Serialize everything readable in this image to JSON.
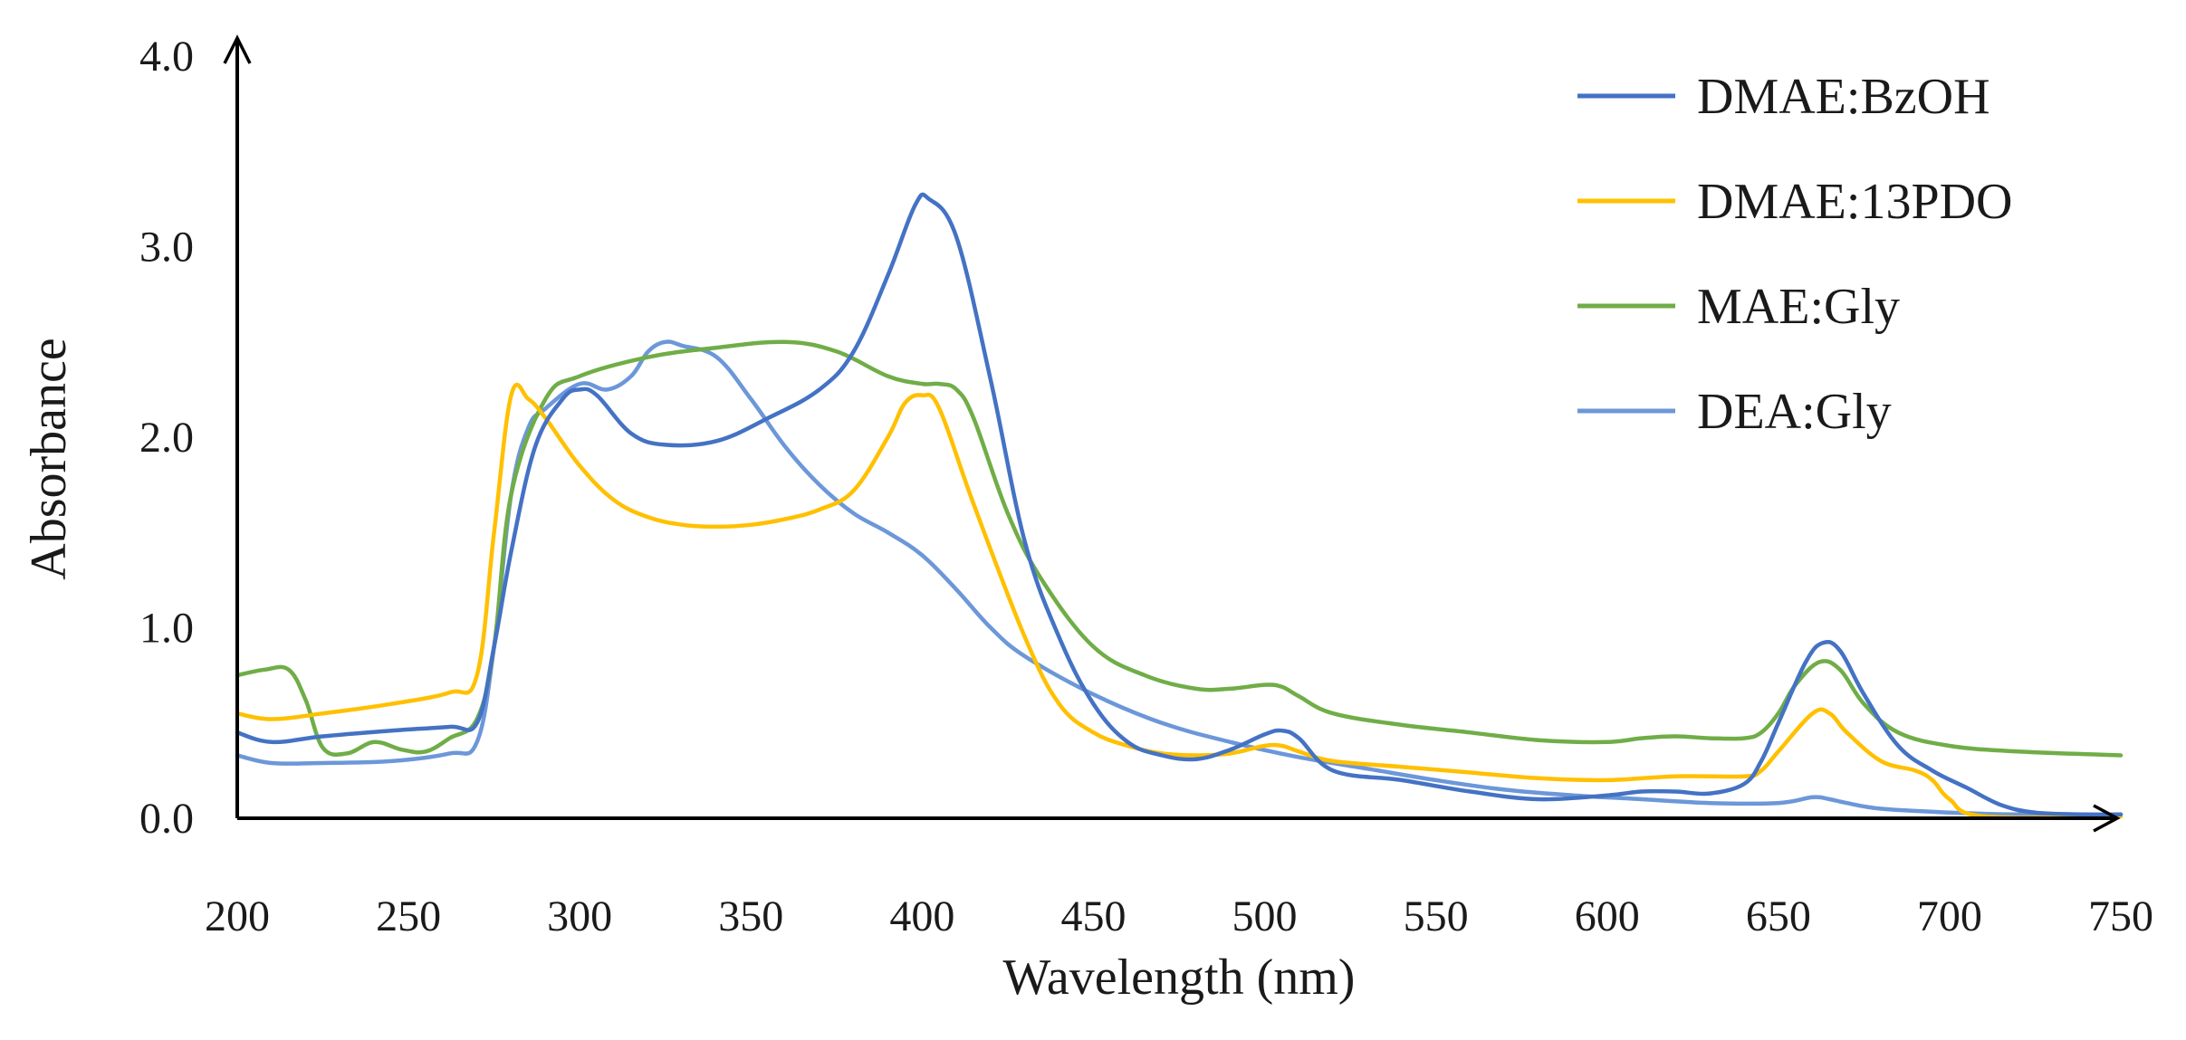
{
  "chart_data": {
    "type": "line",
    "title": "",
    "xlabel": "Wavelength (nm)",
    "ylabel": "Absorbance",
    "xlim": [
      200,
      750
    ],
    "ylim": [
      0,
      4
    ],
    "xticks": [
      "200",
      "250",
      "300",
      "350",
      "400",
      "450",
      "500",
      "550",
      "600",
      "650",
      "700",
      "750"
    ],
    "xtick_values": [
      200,
      250,
      300,
      350,
      400,
      450,
      500,
      550,
      600,
      650,
      700,
      750
    ],
    "yticks": [
      "0.0",
      "1.0",
      "2.0",
      "3.0",
      "4.0"
    ],
    "ytick_values": [
      0,
      1,
      2,
      3,
      4
    ],
    "grid": false,
    "legend_position": "top-right",
    "series": [
      {
        "name": "DMAE:BzOH",
        "color": "#4472C4",
        "x": [
          200,
          210,
          225,
          245,
          262,
          270,
          275,
          280,
          287,
          295,
          300,
          305,
          315,
          325,
          340,
          355,
          370,
          380,
          390,
          398,
          402,
          410,
          420,
          430,
          440,
          450,
          460,
          470,
          480,
          490,
          500,
          505,
          510,
          520,
          540,
          560,
          580,
          600,
          610,
          620,
          630,
          640,
          645,
          650,
          658,
          663,
          668,
          675,
          685,
          695,
          705,
          715,
          725,
          740,
          750
        ],
        "y": [
          0.45,
          0.4,
          0.43,
          0.46,
          0.48,
          0.5,
          0.9,
          1.4,
          1.95,
          2.2,
          2.25,
          2.22,
          2.02,
          1.96,
          1.98,
          2.1,
          2.25,
          2.45,
          2.85,
          3.22,
          3.25,
          3.05,
          2.3,
          1.45,
          0.95,
          0.6,
          0.4,
          0.33,
          0.31,
          0.36,
          0.44,
          0.46,
          0.42,
          0.25,
          0.2,
          0.14,
          0.1,
          0.12,
          0.14,
          0.14,
          0.13,
          0.18,
          0.3,
          0.5,
          0.82,
          0.92,
          0.88,
          0.65,
          0.38,
          0.25,
          0.16,
          0.07,
          0.03,
          0.02,
          0.02
        ]
      },
      {
        "name": "DMAE:13PDO",
        "color": "#FFC000",
        "x": [
          200,
          210,
          225,
          245,
          262,
          270,
          275,
          280,
          285,
          290,
          300,
          310,
          320,
          330,
          340,
          350,
          360,
          370,
          380,
          390,
          395,
          400,
          405,
          415,
          430,
          440,
          450,
          460,
          470,
          480,
          490,
          500,
          505,
          510,
          520,
          540,
          560,
          580,
          600,
          620,
          640,
          645,
          650,
          660,
          665,
          670,
          680,
          690,
          695,
          700,
          710,
          750
        ],
        "y": [
          0.55,
          0.52,
          0.55,
          0.6,
          0.66,
          0.75,
          1.5,
          2.22,
          2.2,
          2.1,
          1.85,
          1.67,
          1.58,
          1.54,
          1.53,
          1.54,
          1.57,
          1.62,
          1.72,
          2.0,
          2.18,
          2.22,
          2.15,
          1.65,
          0.95,
          0.6,
          0.45,
          0.38,
          0.34,
          0.33,
          0.34,
          0.38,
          0.38,
          0.35,
          0.3,
          0.27,
          0.24,
          0.21,
          0.2,
          0.22,
          0.22,
          0.25,
          0.35,
          0.55,
          0.55,
          0.45,
          0.3,
          0.25,
          0.2,
          0.1,
          0.01,
          0.01
        ]
      },
      {
        "name": "MAE:Gly",
        "color": "#70AD47",
        "x": [
          200,
          208,
          215,
          220,
          225,
          232,
          240,
          248,
          255,
          262,
          270,
          275,
          280,
          290,
          300,
          320,
          340,
          360,
          375,
          390,
          400,
          405,
          410,
          415,
          425,
          435,
          450,
          465,
          480,
          490,
          500,
          505,
          510,
          520,
          540,
          560,
          580,
          600,
          610,
          620,
          630,
          640,
          645,
          650,
          655,
          662,
          668,
          675,
          685,
          700,
          720,
          750
        ],
        "y": [
          0.75,
          0.78,
          0.78,
          0.62,
          0.37,
          0.34,
          0.4,
          0.36,
          0.35,
          0.42,
          0.52,
          0.9,
          1.7,
          2.2,
          2.32,
          2.42,
          2.47,
          2.5,
          2.45,
          2.32,
          2.28,
          2.28,
          2.25,
          2.1,
          1.6,
          1.25,
          0.9,
          0.75,
          0.68,
          0.68,
          0.7,
          0.69,
          0.64,
          0.55,
          0.49,
          0.45,
          0.41,
          0.4,
          0.42,
          0.43,
          0.42,
          0.42,
          0.45,
          0.55,
          0.7,
          0.82,
          0.78,
          0.6,
          0.45,
          0.38,
          0.35,
          0.33
        ]
      },
      {
        "name": "DEA:Gly",
        "color": "#6C97D9",
        "x": [
          200,
          210,
          225,
          245,
          262,
          270,
          275,
          280,
          285,
          290,
          300,
          308,
          315,
          320,
          325,
          330,
          340,
          350,
          360,
          370,
          380,
          390,
          400,
          410,
          420,
          430,
          450,
          470,
          490,
          510,
          530,
          550,
          570,
          590,
          610,
          630,
          650,
          660,
          665,
          670,
          680,
          700,
          720,
          750
        ],
        "y": [
          0.33,
          0.29,
          0.29,
          0.3,
          0.34,
          0.4,
          0.9,
          1.7,
          2.05,
          2.15,
          2.28,
          2.25,
          2.32,
          2.45,
          2.5,
          2.48,
          2.42,
          2.2,
          1.95,
          1.75,
          1.6,
          1.5,
          1.38,
          1.2,
          1.0,
          0.85,
          0.65,
          0.5,
          0.4,
          0.32,
          0.26,
          0.2,
          0.15,
          0.12,
          0.1,
          0.08,
          0.08,
          0.11,
          0.1,
          0.08,
          0.05,
          0.03,
          0.02,
          0.02
        ]
      }
    ]
  }
}
